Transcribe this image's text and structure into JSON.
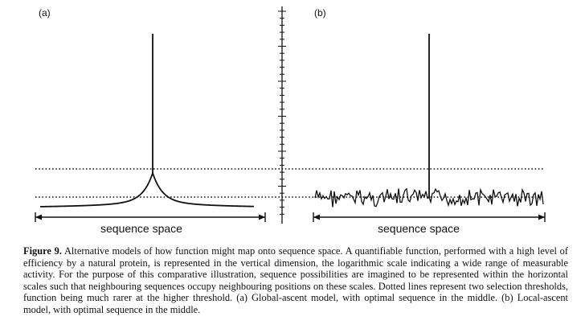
{
  "figure": {
    "panel_a_label": "(a)",
    "panel_b_label": "(b)",
    "axis_label_a": "sequence space",
    "axis_label_b": "sequence space",
    "panel_a_model": "global-ascent (single smooth peak in the middle)",
    "panel_b_model": "local-ascent (rugged noise with a single spike in the middle)",
    "selection_thresholds": 2,
    "line_color": "#111111",
    "threshold_style": "dotted"
  },
  "caption": {
    "label": "Figure 9.",
    "text": " Alternative models of how function might map onto sequence space. A quantifiable function, performed with a high level of efficiency by a natural protein, is represented in the vertical dimension, the logarithmic scale indicating a wide range of measurable activity. For the purpose of this comparative illustration, sequence possibilities are imagined to be represented within the horizontal scales such that neighbouring sequences occupy neighbouring positions on these scales. Dotted lines represent two selection thresholds, function being much rarer at the higher threshold. (a) Global-ascent model, with optimal sequence in the middle. (b) Local-ascent model, with optimal sequence in the middle."
  }
}
